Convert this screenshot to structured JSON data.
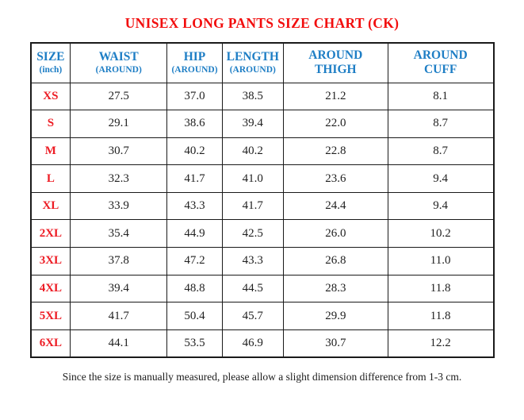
{
  "page": {
    "title": "UNISEX LONG PANTS SIZE CHART (CK)",
    "footnote": "Since the size is manually measured, please allow a slight dimension difference from 1-3 cm."
  },
  "colors": {
    "title_red": "#f20d0d",
    "size_red": "#ed1c24",
    "header_blue": "#1e7ec5",
    "border_dark": "#1a1a1a",
    "value_text": "#1f1f1f"
  },
  "table": {
    "columns": [
      {
        "line1": "SIZE",
        "line2": "(inch)",
        "line2_small": true
      },
      {
        "line1": "WAIST",
        "line2": "(AROUND)",
        "line2_small": true
      },
      {
        "line1": "HIP",
        "line2": "(AROUND)",
        "line2_small": true
      },
      {
        "line1": "LENGTH",
        "line2": "(AROUND)",
        "line2_small": true
      },
      {
        "line1": "AROUND",
        "line2": "THIGH",
        "line2_small": false
      },
      {
        "line1": "AROUND",
        "line2": "CUFF",
        "line2_small": false
      }
    ],
    "rows": [
      {
        "size": "XS",
        "values": [
          "27.5",
          "37.0",
          "38.5",
          "21.2",
          "8.1"
        ]
      },
      {
        "size": "S",
        "values": [
          "29.1",
          "38.6",
          "39.4",
          "22.0",
          "8.7"
        ]
      },
      {
        "size": "M",
        "values": [
          "30.7",
          "40.2",
          "40.2",
          "22.8",
          "8.7"
        ]
      },
      {
        "size": "L",
        "values": [
          "32.3",
          "41.7",
          "41.0",
          "23.6",
          "9.4"
        ]
      },
      {
        "size": "XL",
        "values": [
          "33.9",
          "43.3",
          "41.7",
          "24.4",
          "9.4"
        ]
      },
      {
        "size": "2XL",
        "values": [
          "35.4",
          "44.9",
          "42.5",
          "26.0",
          "10.2"
        ]
      },
      {
        "size": "3XL",
        "values": [
          "37.8",
          "47.2",
          "43.3",
          "26.8",
          "11.0"
        ]
      },
      {
        "size": "4XL",
        "values": [
          "39.4",
          "48.8",
          "44.5",
          "28.3",
          "11.8"
        ]
      },
      {
        "size": "5XL",
        "values": [
          "41.7",
          "50.4",
          "45.7",
          "29.9",
          "11.8"
        ]
      },
      {
        "size": "6XL",
        "values": [
          "44.1",
          "53.5",
          "46.9",
          "30.7",
          "12.2"
        ]
      }
    ]
  }
}
